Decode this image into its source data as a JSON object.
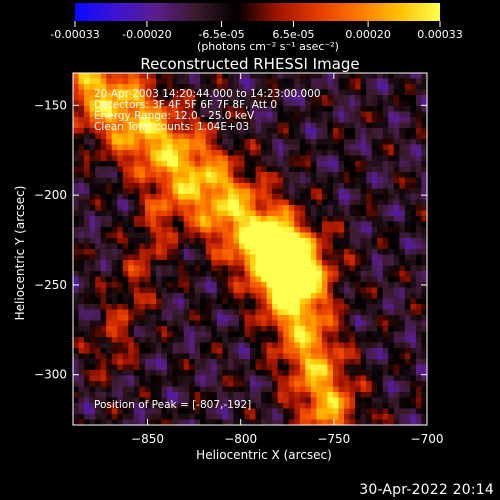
{
  "colors": {
    "background": "#000000",
    "text": "#ffffff",
    "colormap": [
      "#0a0aff",
      "#3c14d2",
      "#5a1e8c",
      "#3a1a2a",
      "#000000",
      "#a01400",
      "#e63c00",
      "#ff7800",
      "#ffc000",
      "#ffff50"
    ]
  },
  "colorbar": {
    "tick_labels": [
      "-0.00033",
      "-0.00020",
      "-6.5e-05",
      "6.5e-05",
      "0.00020",
      "0.00033"
    ],
    "unit_label": "(photons cm⁻² s⁻¹ asec⁻²)"
  },
  "chart_data": {
    "type": "heatmap",
    "title": "Reconstructed RHESSI Image",
    "xlabel": "Heliocentric X (arcsec)",
    "ylabel": "Heliocentric Y (arcsec)",
    "xlim": [
      -890,
      -700
    ],
    "ylim": [
      -328,
      -132
    ],
    "xticks": [
      -850,
      -800,
      -750,
      -700
    ],
    "yticks": [
      -150,
      -200,
      -250,
      -300
    ],
    "xtick_labels": [
      "−850",
      "−800",
      "−750",
      "−700"
    ],
    "ytick_labels": [
      "−150",
      "−200",
      "−250",
      "−300"
    ],
    "value_range": [
      -0.00033,
      0.00033
    ],
    "annotations": [
      "20-Apr-2003 14:20:44.000 to 14:23:00.000",
      "Detectors: 3F 4F 5F 6F 7F 8F, Att 0",
      "Energy Range: 12.0 - 25.0 keV",
      "Clean   Total counts: 1.04E+03"
    ],
    "peak_label": "Position of Peak = [-807,-192]",
    "peak_position": [
      -807,
      -192
    ]
  },
  "footer": {
    "timestamp": "30-Apr-2022 20:14"
  }
}
